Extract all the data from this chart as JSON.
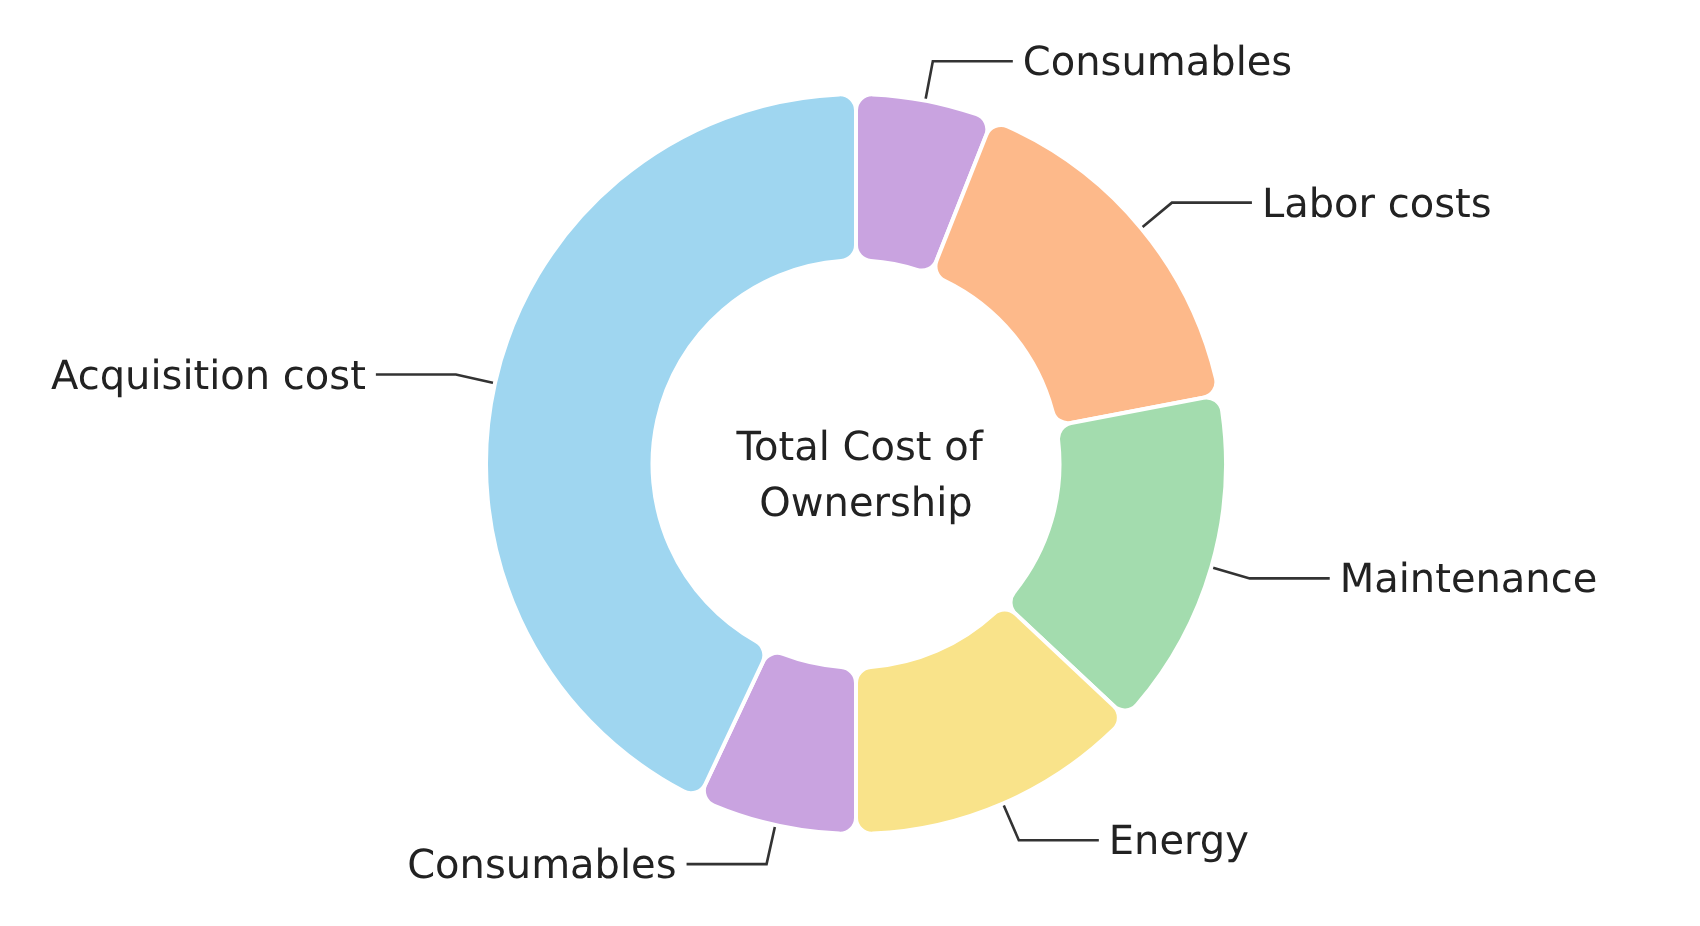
{
  "chart_data": {
    "type": "donut",
    "title": "Total Cost of Ownership",
    "categories": [
      "Consumables",
      "Labor costs",
      "Maintenance",
      "Energy",
      "Consumables",
      "Acquisition cost"
    ],
    "values": [
      6,
      16,
      15,
      13,
      7,
      43
    ],
    "colors": [
      "#c9a3e0",
      "#fdb98a",
      "#a3dcae",
      "#f9e38a",
      "#c9a3e0",
      "#9fd6f0"
    ],
    "legend": false
  }
}
